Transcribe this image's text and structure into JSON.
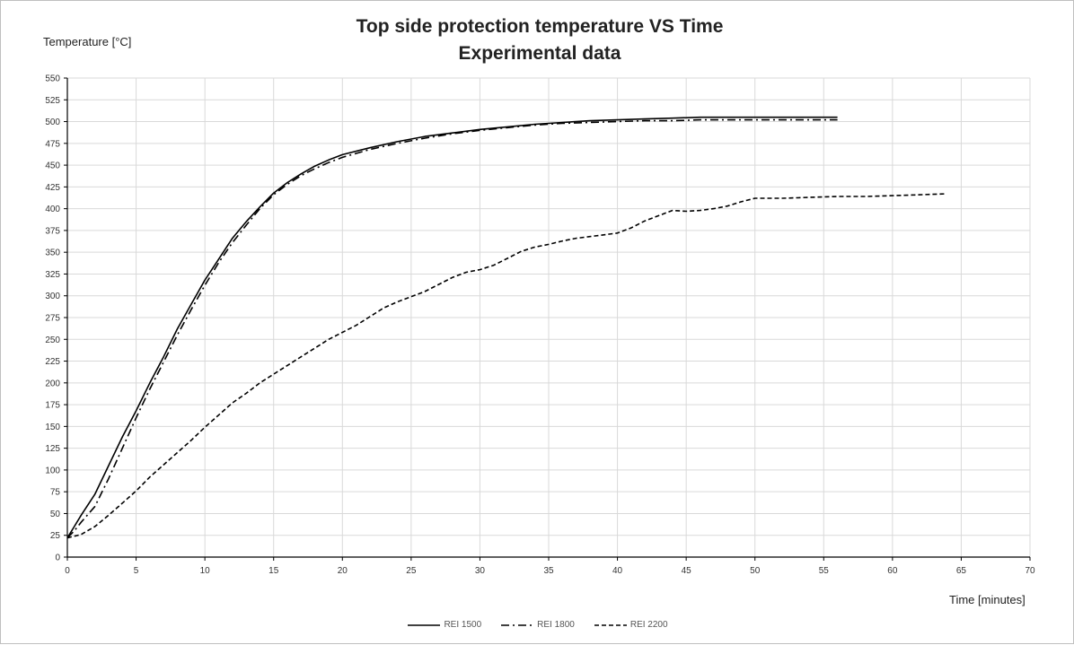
{
  "chart_data": {
    "type": "line",
    "title": "Top side protection temperature VS Time",
    "subtitle": "Experimental data",
    "xlabel": "Time  [minutes]",
    "ylabel": "Temperature [°C]",
    "xlim": [
      0,
      70
    ],
    "ylim": [
      0,
      550
    ],
    "xticks": [
      0,
      5,
      10,
      15,
      20,
      25,
      30,
      35,
      40,
      45,
      50,
      55,
      60,
      65,
      70
    ],
    "yticks": [
      0,
      25,
      50,
      75,
      100,
      125,
      150,
      175,
      200,
      225,
      250,
      275,
      300,
      325,
      350,
      375,
      400,
      425,
      450,
      475,
      500,
      525,
      550
    ],
    "grid": true,
    "legend_position": "bottom",
    "series": [
      {
        "name": "REI 1500",
        "style": "solid",
        "color": "#000000",
        "x": [
          0,
          0.5,
          1,
          2,
          3,
          4,
          5,
          6,
          7,
          8,
          9,
          10,
          11,
          12,
          13,
          14,
          15,
          16,
          17,
          18,
          19,
          20,
          22,
          24,
          26,
          28,
          30,
          32,
          34,
          36,
          38,
          40,
          42,
          44,
          46,
          48,
          50,
          52,
          54,
          56
        ],
        "y": [
          22,
          35,
          48,
          72,
          105,
          138,
          168,
          200,
          230,
          262,
          290,
          318,
          342,
          366,
          385,
          402,
          418,
          430,
          440,
          449,
          456,
          462,
          470,
          477,
          483,
          487,
          491,
          494,
          497,
          499,
          501,
          502,
          503,
          504,
          505,
          505,
          505,
          505,
          505,
          505
        ]
      },
      {
        "name": "REI 1800",
        "style": "dashdot",
        "color": "#000000",
        "x": [
          0,
          0.5,
          1,
          2,
          3,
          4,
          5,
          6,
          7,
          8,
          9,
          10,
          11,
          12,
          13,
          14,
          15,
          16,
          17,
          18,
          19,
          20,
          22,
          24,
          26,
          28,
          30,
          32,
          34,
          36,
          38,
          40,
          42,
          44,
          46,
          48,
          50,
          52,
          54,
          56
        ],
        "y": [
          22,
          30,
          40,
          58,
          90,
          125,
          160,
          193,
          224,
          255,
          284,
          312,
          338,
          361,
          381,
          400,
          416,
          428,
          438,
          446,
          453,
          459,
          468,
          475,
          481,
          486,
          490,
          493,
          496,
          498,
          499,
          500,
          501,
          501,
          502,
          502,
          502,
          502,
          502,
          502
        ]
      },
      {
        "name": "REI 2200",
        "style": "dashed",
        "color": "#000000",
        "x": [
          0,
          1,
          2,
          3,
          4,
          5,
          6,
          7,
          8,
          9,
          10,
          11,
          12,
          13,
          14,
          15,
          16,
          17,
          18,
          19,
          20,
          21,
          22,
          23,
          24,
          25,
          26,
          27,
          28,
          29,
          30,
          31,
          32,
          33,
          34,
          35,
          36,
          37,
          38,
          39,
          40,
          41,
          42,
          43,
          44,
          45,
          46,
          47,
          48,
          49,
          50,
          52,
          54,
          56,
          58,
          60,
          62,
          63.8
        ],
        "y": [
          22,
          26,
          35,
          48,
          62,
          76,
          92,
          106,
          120,
          134,
          149,
          163,
          177,
          188,
          200,
          210,
          220,
          230,
          240,
          250,
          258,
          266,
          276,
          286,
          293,
          299,
          305,
          313,
          321,
          327,
          330,
          335,
          343,
          351,
          356,
          359,
          363,
          366,
          368,
          370,
          372,
          378,
          386,
          392,
          398,
          397,
          398,
          400,
          403,
          408,
          412,
          412,
          413,
          414,
          414,
          415,
          416,
          417
        ]
      }
    ]
  }
}
